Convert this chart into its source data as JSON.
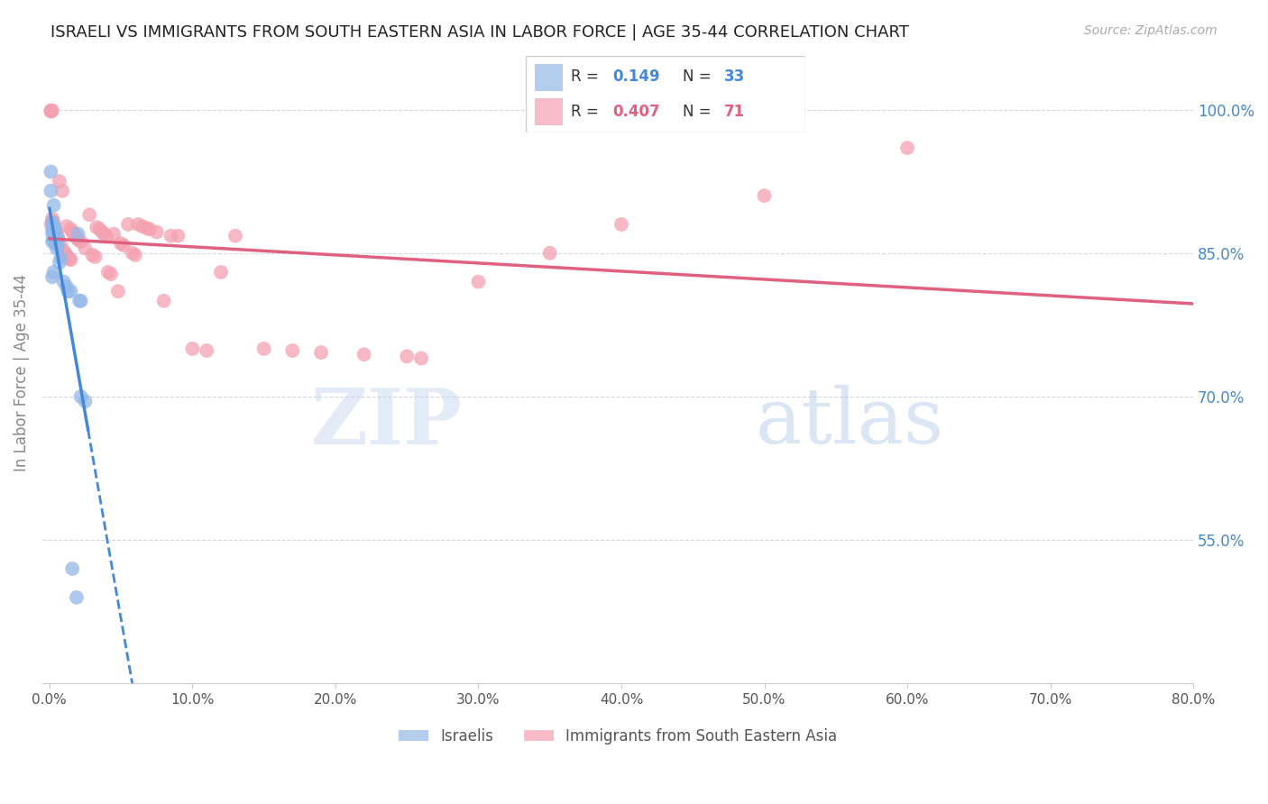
{
  "title": "ISRAELI VS IMMIGRANTS FROM SOUTH EASTERN ASIA IN LABOR FORCE | AGE 35-44 CORRELATION CHART",
  "source": "Source: ZipAtlas.com",
  "ylabel": "In Labor Force | Age 35-44",
  "ytick_labels": [
    "100.0%",
    "85.0%",
    "70.0%",
    "55.0%"
  ],
  "ytick_values": [
    1.0,
    0.85,
    0.7,
    0.55
  ],
  "xlim": [
    0.0,
    0.8
  ],
  "ylim": [
    0.4,
    1.05
  ],
  "israeli_color": "#93b8e8",
  "immigrant_color": "#f4a0b0",
  "israeli_R": 0.149,
  "israeli_N": 33,
  "immigrant_R": 0.407,
  "immigrant_N": 71,
  "legend_label_1": "Israelis",
  "legend_label_2": "Immigrants from South Eastern Asia",
  "israeli_x": [
    0.001,
    0.001,
    0.002,
    0.002,
    0.002,
    0.002,
    0.003,
    0.003,
    0.003,
    0.003,
    0.004,
    0.004,
    0.004,
    0.005,
    0.005,
    0.006,
    0.006,
    0.007,
    0.008,
    0.01,
    0.012,
    0.013,
    0.015,
    0.02,
    0.021,
    0.022,
    0.025,
    0.003,
    0.002,
    0.003,
    0.022,
    0.016,
    0.019
  ],
  "israeli_y": [
    0.935,
    0.915,
    0.875,
    0.862,
    0.87,
    0.882,
    0.863,
    0.87,
    0.875,
    0.878,
    0.86,
    0.868,
    0.875,
    0.855,
    0.862,
    0.858,
    0.865,
    0.84,
    0.845,
    0.82,
    0.815,
    0.81,
    0.81,
    0.87,
    0.8,
    0.8,
    0.695,
    0.83,
    0.825,
    0.9,
    0.7,
    0.52,
    0.49
  ],
  "immigrant_x": [
    0.001,
    0.001,
    0.001,
    0.002,
    0.002,
    0.002,
    0.003,
    0.003,
    0.003,
    0.004,
    0.004,
    0.005,
    0.005,
    0.006,
    0.007,
    0.008,
    0.009,
    0.01,
    0.011,
    0.012,
    0.013,
    0.014,
    0.015,
    0.015,
    0.016,
    0.017,
    0.018,
    0.019,
    0.02,
    0.022,
    0.025,
    0.028,
    0.03,
    0.032,
    0.033,
    0.035,
    0.037,
    0.038,
    0.04,
    0.041,
    0.043,
    0.045,
    0.048,
    0.05,
    0.052,
    0.055,
    0.058,
    0.06,
    0.062,
    0.065,
    0.068,
    0.07,
    0.075,
    0.08,
    0.085,
    0.09,
    0.1,
    0.11,
    0.12,
    0.13,
    0.15,
    0.17,
    0.19,
    0.22,
    0.25,
    0.26,
    0.3,
    0.35,
    0.4,
    0.5,
    0.6
  ],
  "immigrant_y": [
    0.999,
    0.998,
    0.88,
    0.999,
    0.883,
    0.886,
    0.873,
    0.876,
    0.882,
    0.87,
    0.874,
    0.868,
    0.872,
    0.866,
    0.925,
    0.858,
    0.915,
    0.852,
    0.85,
    0.878,
    0.846,
    0.844,
    0.843,
    0.875,
    0.872,
    0.87,
    0.868,
    0.866,
    0.864,
    0.862,
    0.855,
    0.89,
    0.848,
    0.846,
    0.877,
    0.875,
    0.872,
    0.87,
    0.868,
    0.83,
    0.828,
    0.87,
    0.81,
    0.86,
    0.858,
    0.88,
    0.85,
    0.848,
    0.88,
    0.878,
    0.876,
    0.875,
    0.872,
    0.8,
    0.868,
    0.868,
    0.75,
    0.748,
    0.83,
    0.868,
    0.75,
    0.748,
    0.746,
    0.744,
    0.742,
    0.74,
    0.82,
    0.85,
    0.88,
    0.91,
    0.96
  ],
  "watermark_zip": "ZIP",
  "watermark_atlas": "atlas",
  "background_color": "#ffffff",
  "grid_color": "#d0d8e0",
  "title_color": "#222222",
  "right_tick_color": "#4488cc",
  "source_color": "#aaaaaa",
  "trend_blue": "#4488dd",
  "trend_pink": "#e06080"
}
